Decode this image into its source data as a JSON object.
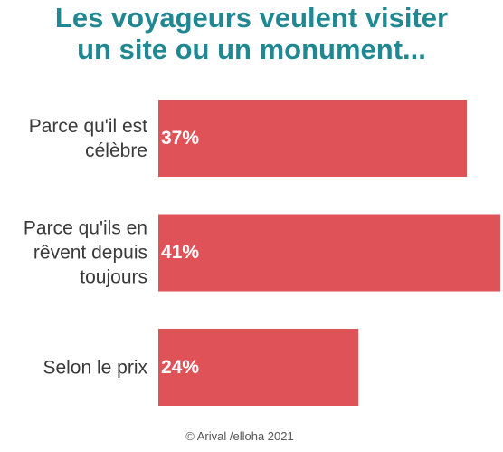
{
  "chart_data": {
    "type": "bar",
    "orientation": "horizontal",
    "title": "Les voyageurs veulent visiter\nun site ou un monument...",
    "categories": [
      "Parce qu'il est\ncélèbre",
      "Parce qu'ils en\nrêvent depuis\ntoujours",
      "Selon le prix"
    ],
    "values": [
      37,
      41,
      24
    ],
    "value_labels": [
      "37%",
      "41%",
      "24%"
    ],
    "color": "#de5258",
    "xlim": [
      0,
      41
    ],
    "footer": "© Arival /elloha 2021"
  }
}
